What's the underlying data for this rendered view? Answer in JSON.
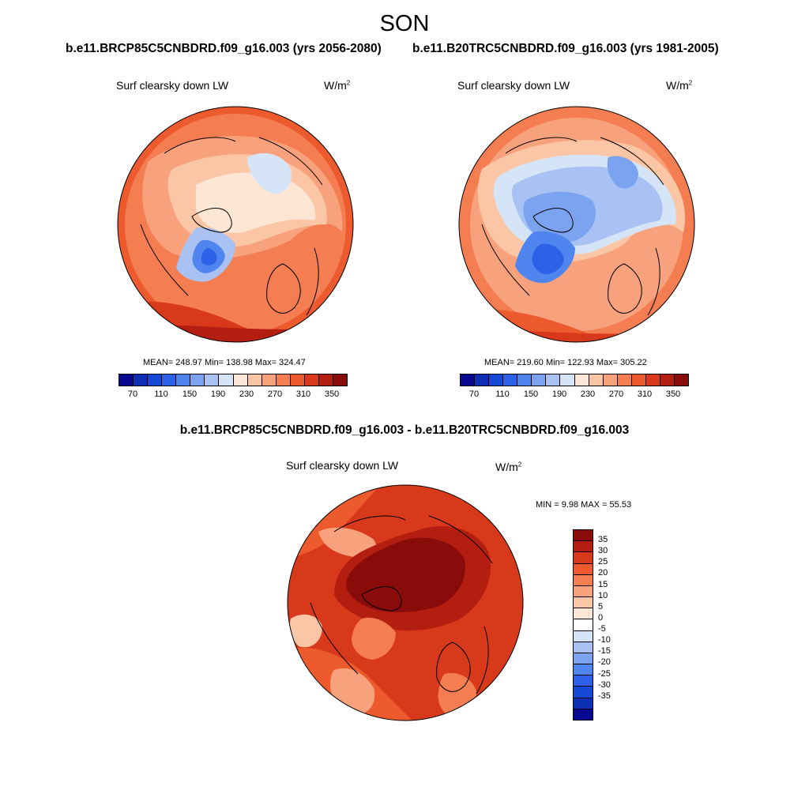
{
  "title": "SON",
  "panels": {
    "left": {
      "case_title": "b.e11.BRCP85C5CNBDRD.f09_g16.003 (yrs 2056-2080)",
      "label": "Surf clearsky down LW",
      "units_base": "W/m",
      "units_exp": "2",
      "stats": "MEAN= 248.97  Min= 138.98  Max= 324.47",
      "mean": 248.97,
      "min": 138.98,
      "max": 324.47
    },
    "right": {
      "case_title": "b.e11.B20TRC5CNBDRD.f09_g16.003 (yrs 1981-2005)",
      "label": "Surf clearsky down LW",
      "units_base": "W/m",
      "units_exp": "2",
      "stats": "MEAN= 219.60  Min= 122.93  Max= 305.22",
      "mean": 219.6,
      "min": 122.93,
      "max": 305.22
    },
    "diff": {
      "case_title": "b.e11.BRCP85C5CNBDRD.f09_g16.003 - b.e11.B20TRC5CNBDRD.f09_g16.003",
      "label": "Surf clearsky down LW",
      "units_base": "W/m",
      "units_exp": "2",
      "stats": "MIN =   9.98 MAX =  55.53",
      "min": 9.98,
      "max": 55.53
    }
  },
  "colorbars": {
    "abs": {
      "tick_labels": [
        "70",
        "110",
        "150",
        "190",
        "230",
        "270",
        "310",
        "350"
      ],
      "colors": [
        "#08088f",
        "#0c2fb4",
        "#1648d6",
        "#2d62e8",
        "#5084ee",
        "#7ca3f0",
        "#a9c2f3",
        "#d6e4f8",
        "#fde6d3",
        "#fbc6a6",
        "#f8a27d",
        "#f47d52",
        "#ec5a2e",
        "#d8391a",
        "#b31e10",
        "#8a0c0a"
      ]
    },
    "diff": {
      "tick_labels": [
        "35",
        "30",
        "25",
        "20",
        "15",
        "10",
        "5",
        "0",
        "-5",
        "-10",
        "-15",
        "-20",
        "-25",
        "-30",
        "-35"
      ],
      "colors": [
        "#8a0c0a",
        "#b31e10",
        "#d8391a",
        "#ec5a2e",
        "#f47d52",
        "#f8a27d",
        "#fbc6a6",
        "#fde6d3",
        "#ffffff",
        "#d6e4f8",
        "#a9c2f3",
        "#7ca3f0",
        "#5084ee",
        "#2d62e8",
        "#1648d6",
        "#0c2fb4",
        "#08088f"
      ]
    }
  }
}
